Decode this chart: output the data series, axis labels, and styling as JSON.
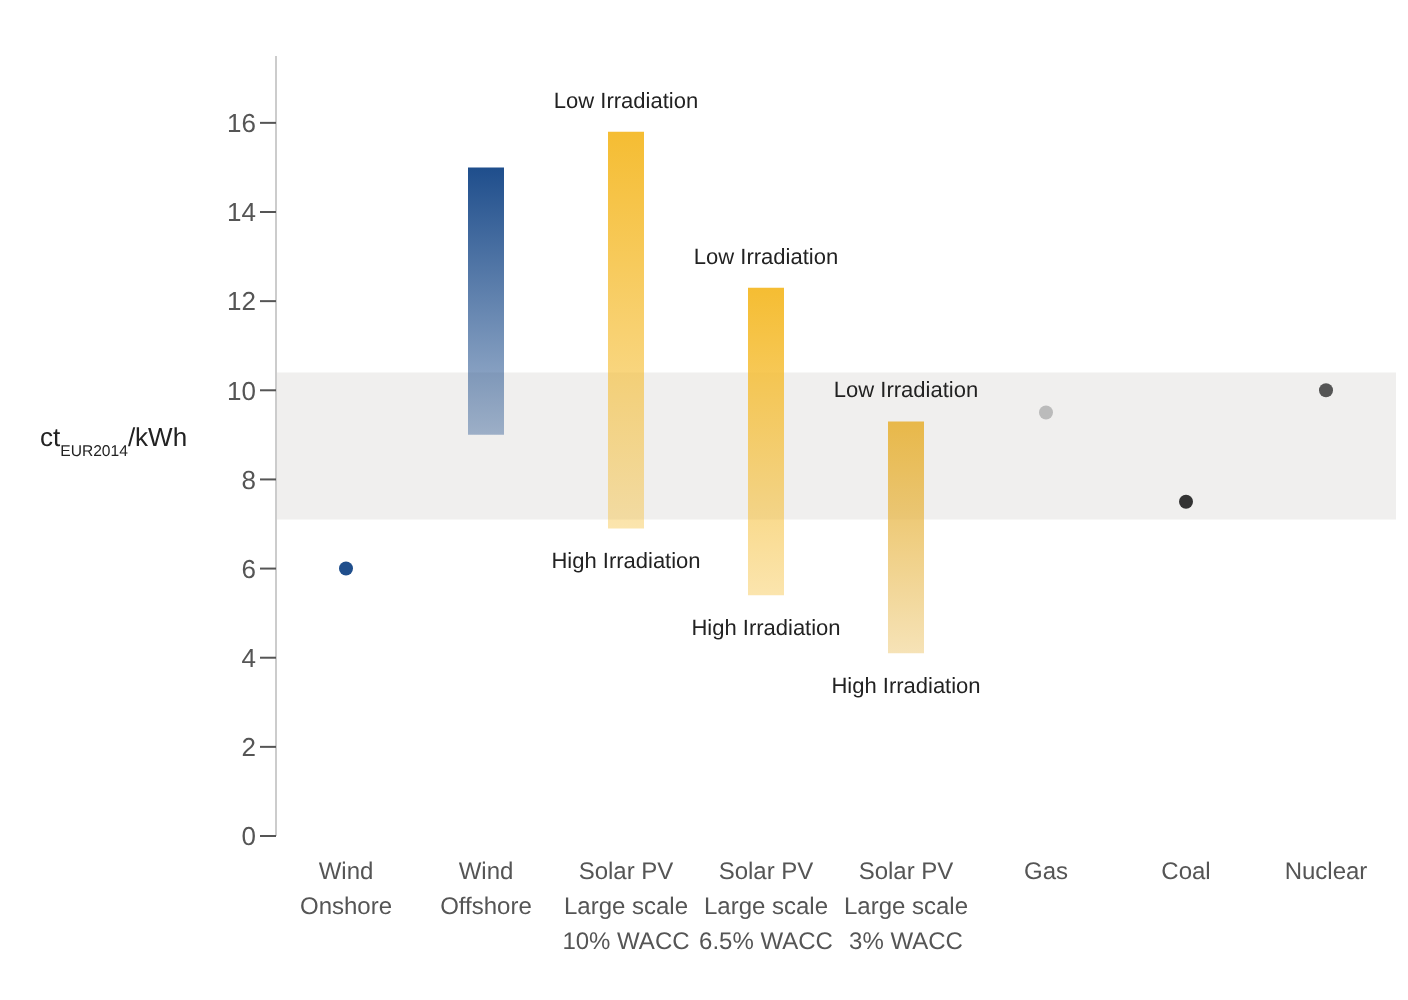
{
  "chart_data": {
    "type": "bar",
    "ylabel": "ct$_{EUR2014}$/kWh",
    "categories": [
      "Wind\nOnshore",
      "Wind\nOffshore",
      "Solar PV\nLarge scale\n10% WACC",
      "Solar PV\nLarge scale\n6.5% WACC",
      "Solar PV\nLarge scale\n3% WACC",
      "Gas",
      "Coal",
      "Nuclear"
    ],
    "series": [
      {
        "base": [
          null,
          9.0,
          6.9,
          5.4,
          4.1,
          null,
          null,
          null
        ],
        "values": [
          null,
          6.0,
          8.9,
          6.9,
          5.2,
          null,
          null,
          null
        ],
        "colors": [
          "#1f4e8c",
          "#1f4e8c",
          "#f5bd33",
          "#f5bd33",
          "#e8b84a",
          "#999999",
          "#333333",
          "#555555"
        ]
      },
      {
        "type": "scatter",
        "values": [
          6.0,
          null,
          null,
          null,
          null,
          9.5,
          7.5,
          10.0
        ],
        "colors": [
          "#1f4e8c",
          "#1f4e8c",
          "#f5bd33",
          "#f5bd33",
          "#e8b84a",
          "#bbbbbb",
          "#333333",
          "#555555"
        ]
      }
    ],
    "bands": [
      {
        "axis": "y",
        "from": 7.1,
        "to": 10.4,
        "color": "#f0efee"
      }
    ],
    "annotations": [
      {
        "text": "Low Irradiation",
        "x": "Solar PV\nLarge scale\n10% WACC",
        "y": 15.8
      },
      {
        "text": "High Irradiation",
        "x": "Solar PV\nLarge scale\n10% WACC",
        "y": 6.9
      },
      {
        "text": "Low Irradiation",
        "x": "Solar PV\nLarge scale\n6.5% WACC",
        "y": 12.3
      },
      {
        "text": "High Irradiation",
        "x": "Solar PV\nLarge scale\n6.5% WACC",
        "y": 5.4
      },
      {
        "text": "Low Irradiation",
        "x": "Solar PV\nLarge scale\n3% WACC",
        "y": 9.3
      },
      {
        "text": "High Irradiation",
        "x": "Solar PV\nLarge scale\n3% WACC",
        "y": 4.1
      }
    ],
    "ylim": [
      0,
      17.5
    ],
    "yticks": [
      0,
      2,
      4,
      6,
      8,
      10,
      12,
      14,
      16
    ],
    "grid": false,
    "legend": false
  }
}
